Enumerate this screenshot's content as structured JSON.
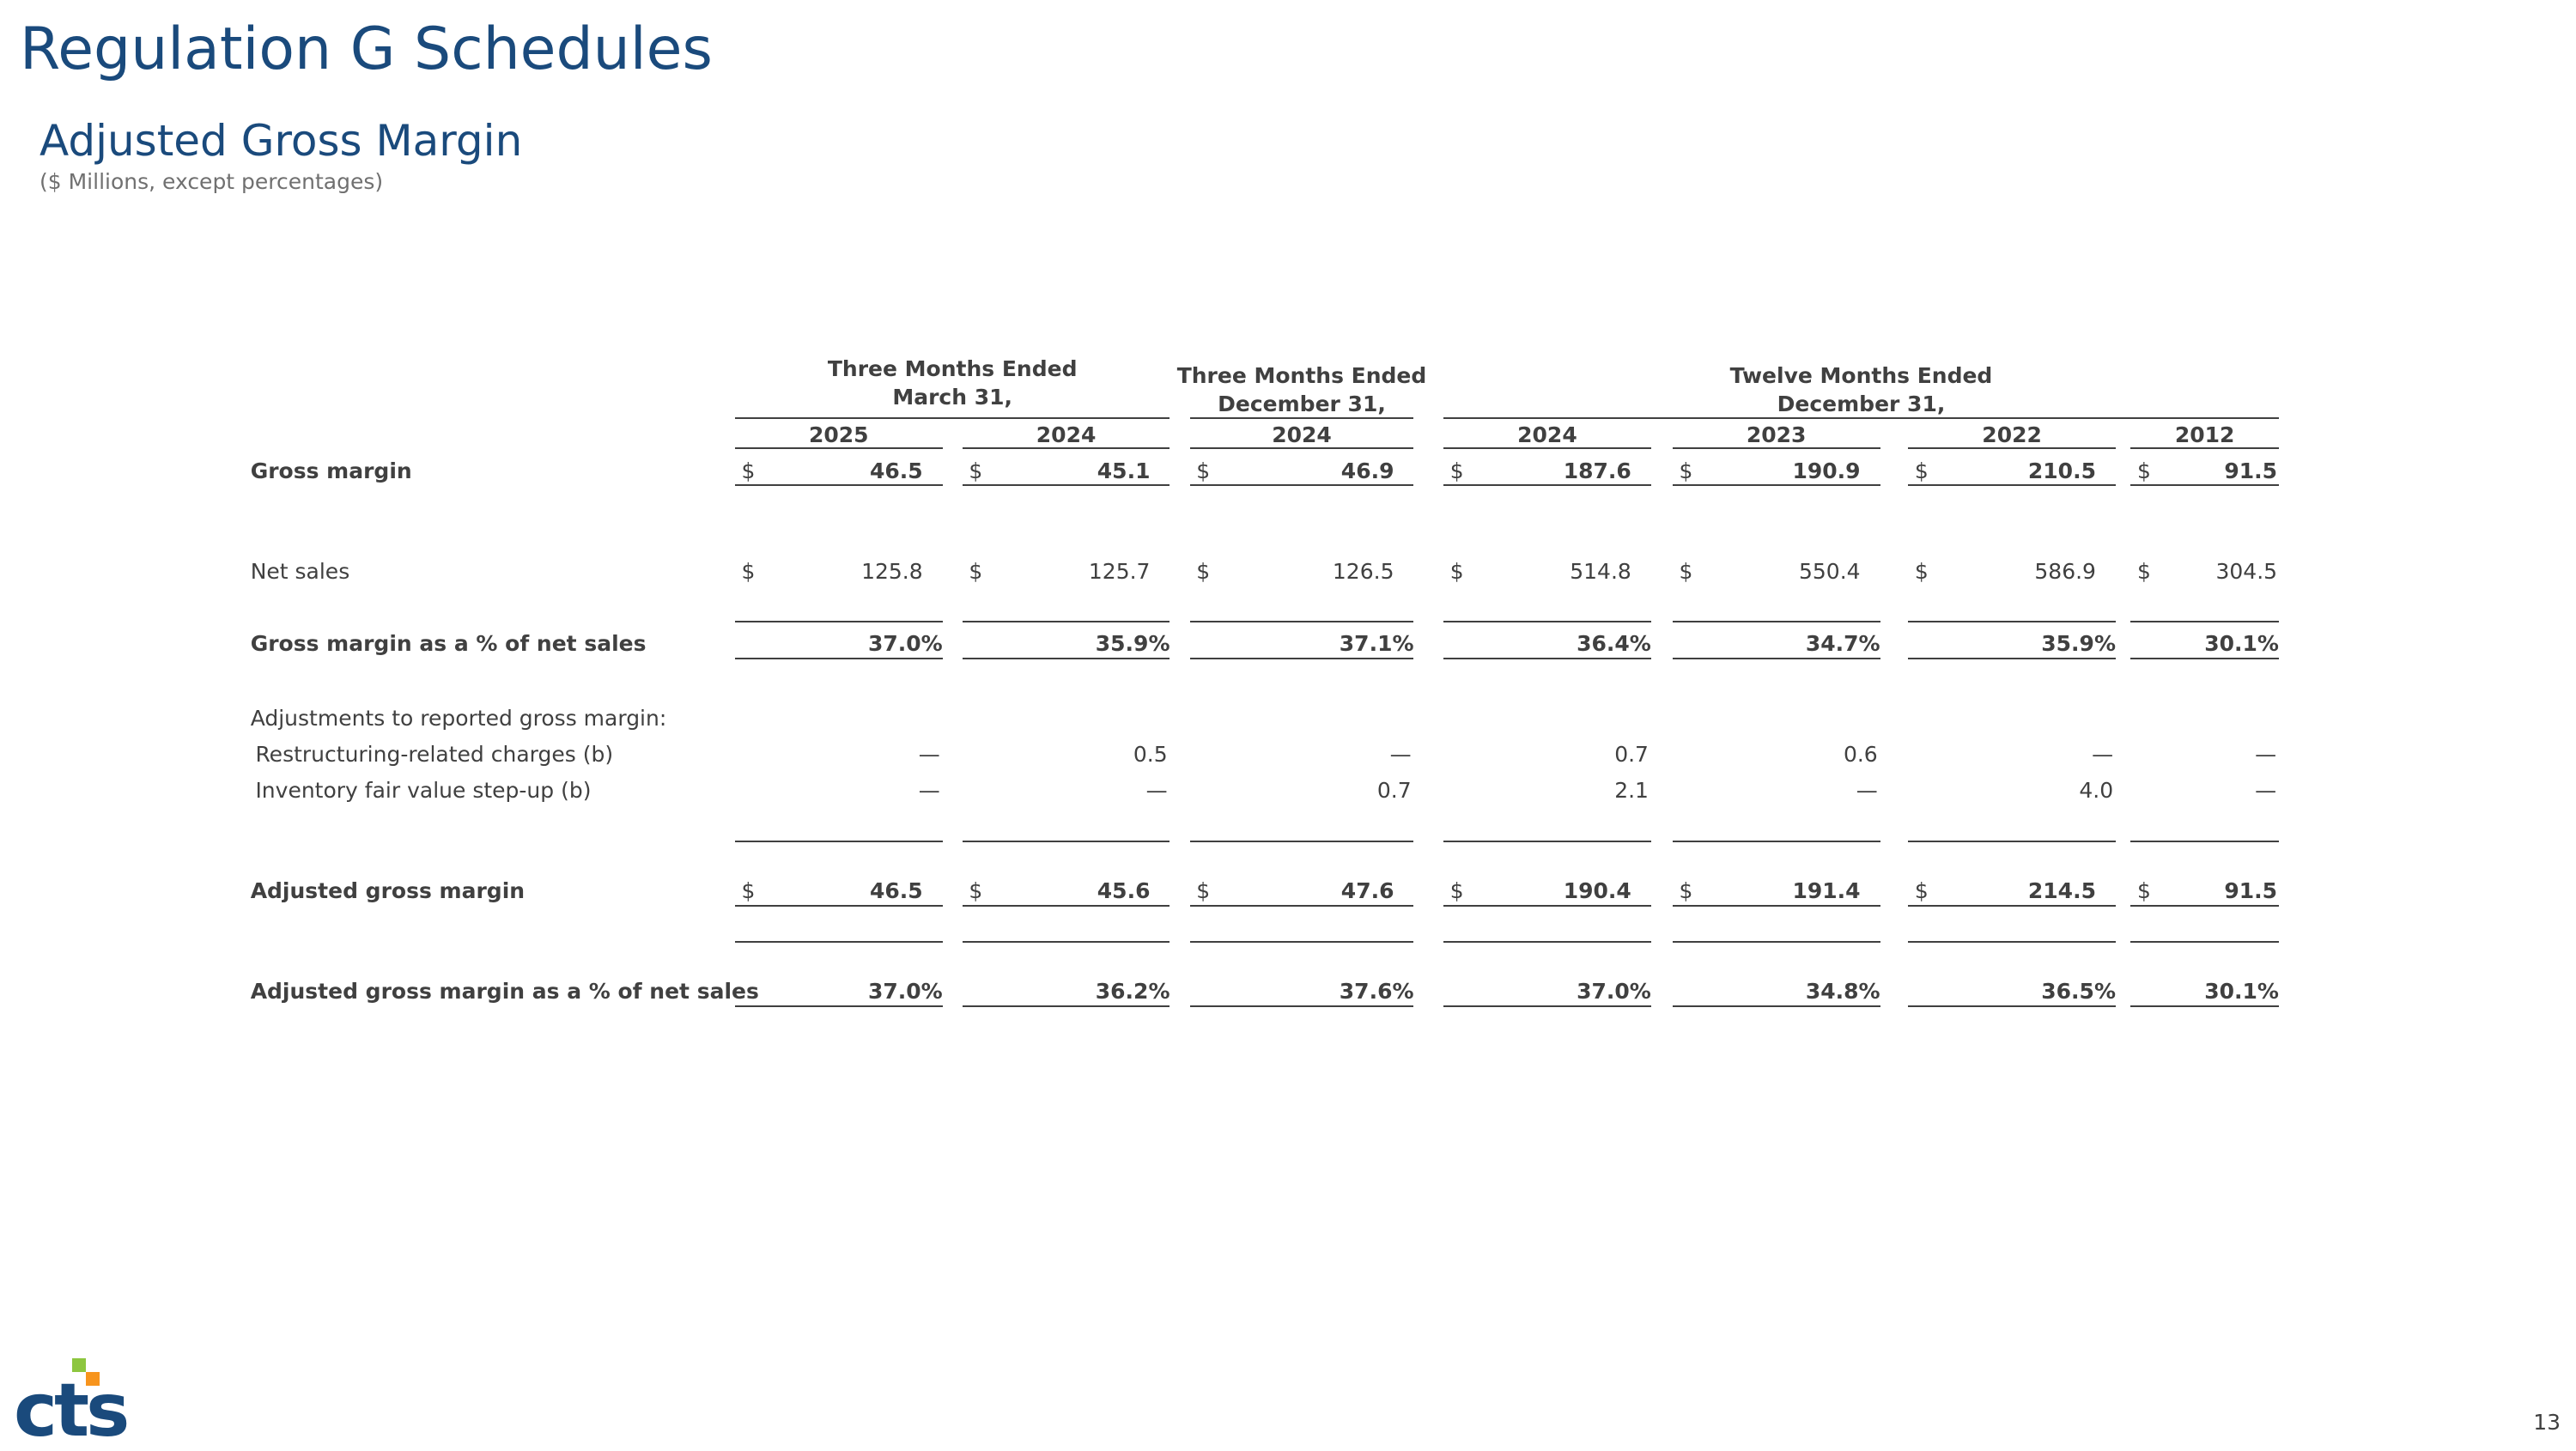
{
  "header": {
    "title": "Regulation G Schedules",
    "subtitle": "Adjusted Gross Margin",
    "note": "($ Millions, except percentages)"
  },
  "table": {
    "column_groups": [
      {
        "lines": [
          "Three Months Ended",
          "March 31,"
        ]
      },
      {
        "lines": [
          "Three Months Ended",
          "December 31,"
        ]
      },
      {
        "lines": [
          "Twelve Months Ended",
          "December 31,"
        ]
      }
    ],
    "years": [
      "2025",
      "2024",
      "2024",
      "2024",
      "2023",
      "2022",
      "2012"
    ],
    "rows": [
      {
        "label": "Gross margin",
        "currency": "$",
        "cells": [
          "46.5",
          "45.1",
          "46.9",
          "187.6",
          "190.9",
          "210.5",
          "91.5"
        ]
      },
      {
        "label": "Net sales",
        "currency": "$",
        "cells": [
          "125.8",
          "125.7",
          "126.5",
          "514.8",
          "550.4",
          "586.9",
          "304.5"
        ]
      },
      {
        "label": "Gross margin as a % of net sales",
        "cells": [
          "37.0%",
          "35.9%",
          "37.1%",
          "36.4%",
          "34.7%",
          "35.9%",
          "30.1%"
        ]
      },
      {
        "label": "Adjustments to reported gross margin:"
      },
      {
        "label": "Restructuring-related charges (b)",
        "cells": [
          "—",
          "0.5",
          "—",
          "0.7",
          "0.6",
          "—",
          "—"
        ]
      },
      {
        "label": "Inventory fair value step-up (b)",
        "cells": [
          "—",
          "—",
          "0.7",
          "2.1",
          "—",
          "4.0",
          "—"
        ]
      },
      {
        "label": "Adjusted gross margin",
        "currency": "$",
        "cells": [
          "46.5",
          "45.6",
          "47.6",
          "190.4",
          "191.4",
          "214.5",
          "91.5"
        ]
      },
      {
        "label": "Adjusted gross margin as a % of net sales",
        "cells": [
          "37.0%",
          "36.2%",
          "37.6%",
          "37.0%",
          "34.8%",
          "36.5%",
          "30.1%"
        ]
      }
    ]
  },
  "footer": {
    "logo": "cts",
    "page_number": "13"
  }
}
